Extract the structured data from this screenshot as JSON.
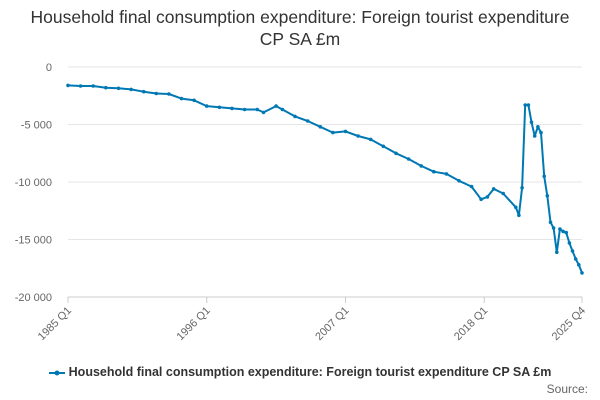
{
  "chart_data": {
    "type": "line",
    "title": "Household final consumption expenditure: Foreign tourist expenditure CP SA £m",
    "xlabel": "",
    "ylabel": "",
    "ylim": [
      -20000,
      0
    ],
    "y_ticks": [
      0,
      -5000,
      -10000,
      -15000,
      -20000
    ],
    "y_tick_labels": [
      "0",
      "-5 000",
      "-10 000",
      "-15 000",
      "-20 000"
    ],
    "x_tick_labels": [
      "1985 Q1",
      "1996 Q1",
      "2007 Q1",
      "2018 Q1",
      "2025 Q4"
    ],
    "x_tick_positions": [
      "1985 Q1",
      "1996 Q1",
      "2007 Q1",
      "2018 Q1",
      "2025 Q4"
    ],
    "grid": true,
    "legend_position": "bottom",
    "color": "#0078b4",
    "series": [
      {
        "name": "Household final consumption expenditure: Foreign tourist expenditure CP SA £m",
        "points": [
          [
            "1985 Q1",
            -1600
          ],
          [
            "1986 Q1",
            -1650
          ],
          [
            "1987 Q1",
            -1650
          ],
          [
            "1988 Q1",
            -1800
          ],
          [
            "1989 Q1",
            -1850
          ],
          [
            "1990 Q1",
            -1950
          ],
          [
            "1991 Q1",
            -2150
          ],
          [
            "1992 Q1",
            -2300
          ],
          [
            "1993 Q1",
            -2350
          ],
          [
            "1994 Q1",
            -2750
          ],
          [
            "1995 Q1",
            -2900
          ],
          [
            "1996 Q1",
            -3400
          ],
          [
            "1997 Q1",
            -3500
          ],
          [
            "1998 Q1",
            -3600
          ],
          [
            "1999 Q1",
            -3700
          ],
          [
            "2000 Q1",
            -3700
          ],
          [
            "2000 Q3",
            -3950
          ],
          [
            "2001 Q3",
            -3400
          ],
          [
            "2002 Q1",
            -3700
          ],
          [
            "2003 Q1",
            -4300
          ],
          [
            "2004 Q1",
            -4700
          ],
          [
            "2005 Q1",
            -5200
          ],
          [
            "2006 Q1",
            -5700
          ],
          [
            "2007 Q1",
            -5600
          ],
          [
            "2008 Q1",
            -6000
          ],
          [
            "2009 Q1",
            -6300
          ],
          [
            "2010 Q1",
            -6900
          ],
          [
            "2011 Q1",
            -7500
          ],
          [
            "2012 Q1",
            -8000
          ],
          [
            "2013 Q1",
            -8600
          ],
          [
            "2014 Q1",
            -9100
          ],
          [
            "2015 Q1",
            -9300
          ],
          [
            "2016 Q1",
            -9900
          ],
          [
            "2017 Q1",
            -10400
          ],
          [
            "2017 Q4",
            -11500
          ],
          [
            "2018 Q2",
            -11300
          ],
          [
            "2018 Q4",
            -10600
          ],
          [
            "2019 Q3",
            -11000
          ],
          [
            "2020 Q3",
            -12200
          ],
          [
            "2020 Q4",
            -12900
          ],
          [
            "2021 Q1",
            -10500
          ],
          [
            "2021 Q2",
            -3300
          ],
          [
            "2021 Q3",
            -3300
          ],
          [
            "2021 Q4",
            -4800
          ],
          [
            "2022 Q1",
            -6000
          ],
          [
            "2022 Q2",
            -5200
          ],
          [
            "2022 Q3",
            -5700
          ],
          [
            "2022 Q4",
            -9500
          ],
          [
            "2023 Q1",
            -11200
          ],
          [
            "2023 Q2",
            -13500
          ],
          [
            "2023 Q3",
            -14000
          ],
          [
            "2023 Q4",
            -16100
          ],
          [
            "2024 Q1",
            -14100
          ],
          [
            "2024 Q2",
            -14300
          ],
          [
            "2024 Q3",
            -14400
          ],
          [
            "2024 Q4",
            -15300
          ],
          [
            "2025 Q1",
            -16000
          ],
          [
            "2025 Q2",
            -16700
          ],
          [
            "2025 Q3",
            -17200
          ],
          [
            "2025 Q4",
            -17900
          ]
        ]
      }
    ]
  },
  "legend": {
    "label": "Household final consumption expenditure: Foreign tourist expenditure CP SA £m"
  },
  "source": {
    "label": "Source:"
  }
}
